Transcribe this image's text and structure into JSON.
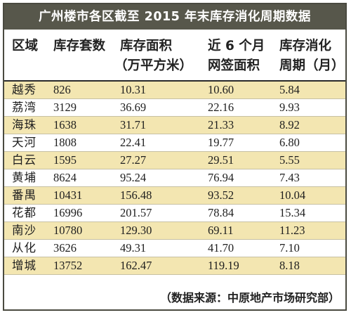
{
  "title": "广州楼市各区截至 2015 年末库存消化周期数据",
  "columns": [
    [
      "区域"
    ],
    [
      "库存套数"
    ],
    [
      "库存面积",
      "（万平方米）"
    ],
    [
      "近 6 个月",
      "网签面积"
    ],
    [
      "库存消化",
      "周期（月）"
    ]
  ],
  "rows": [
    [
      "越秀",
      "826",
      "10.31",
      "10.60",
      "5.84"
    ],
    [
      "荔湾",
      "3129",
      "36.69",
      "22.16",
      "9.93"
    ],
    [
      "海珠",
      "1638",
      "31.71",
      "21.33",
      "8.92"
    ],
    [
      "天河",
      "1808",
      "22.41",
      "19.77",
      "6.80"
    ],
    [
      "白云",
      "1595",
      "27.27",
      "29.51",
      "5.55"
    ],
    [
      "黄埔",
      "8624",
      "95.24",
      "76.94",
      "7.43"
    ],
    [
      "番禺",
      "10431",
      "156.48",
      "93.52",
      "10.04"
    ],
    [
      "花都",
      "16996",
      "201.57",
      "78.84",
      "15.34"
    ],
    [
      "南沙",
      "10780",
      "129.30",
      "69.11",
      "11.23"
    ],
    [
      "从化",
      "3626",
      "49.31",
      "41.70",
      "7.10"
    ],
    [
      "增城",
      "13752",
      "162.47",
      "119.19",
      "8.18"
    ]
  ],
  "source": "（数据来源：中原地产市场研究部）",
  "colors": {
    "title_bg": "#57574b",
    "stripe": "#f3e6b1",
    "text": "#1e1e1e"
  }
}
